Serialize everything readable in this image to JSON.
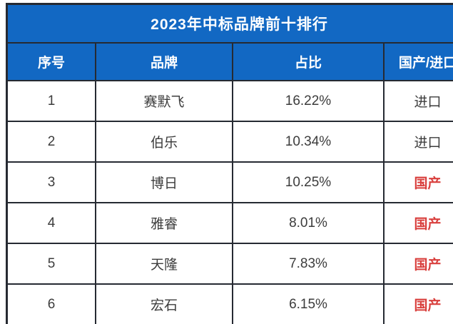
{
  "title": "2023年中标品牌前十排行",
  "table": {
    "columns": [
      "序号",
      "品牌",
      "占比",
      "国产/进口"
    ],
    "rows": [
      {
        "rank": "1",
        "brand": "赛默飞",
        "share": "16.22%",
        "origin": "进口",
        "is_domestic": false
      },
      {
        "rank": "2",
        "brand": "伯乐",
        "share": "10.34%",
        "origin": "进口",
        "is_domestic": false
      },
      {
        "rank": "3",
        "brand": "博日",
        "share": "10.25%",
        "origin": "国产",
        "is_domestic": true
      },
      {
        "rank": "4",
        "brand": "雅睿",
        "share": "8.01%",
        "origin": "国产",
        "is_domestic": true
      },
      {
        "rank": "5",
        "brand": "天隆",
        "share": "7.83%",
        "origin": "国产",
        "is_domestic": true
      },
      {
        "rank": "6",
        "brand": "宏石",
        "share": "6.15%",
        "origin": "国产",
        "is_domestic": true
      }
    ]
  },
  "colors": {
    "header_bg": "#1268c3",
    "line": "#262a32",
    "page_bg": "#ffffff",
    "text_light": "#ffffff",
    "text_dark": "#3c3c3c",
    "import_text": "#3c3c3c",
    "domestic_text": "#d9403e"
  }
}
